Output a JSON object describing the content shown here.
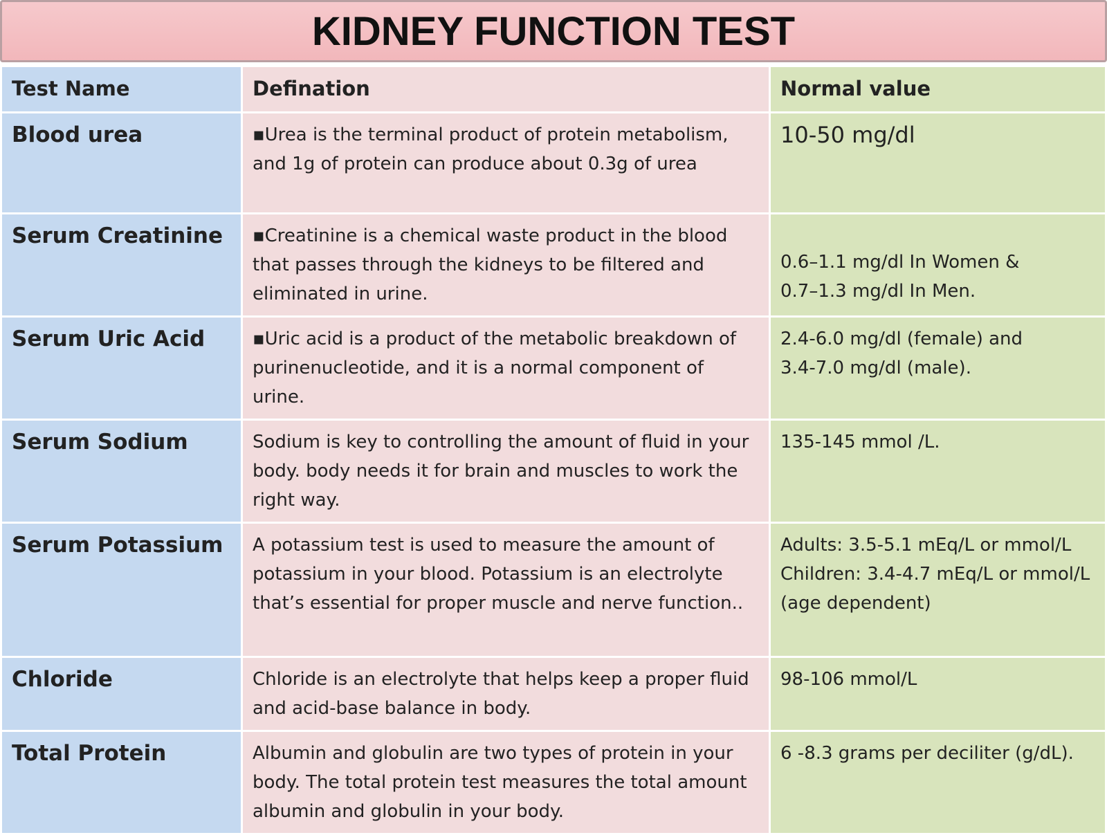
{
  "header": {
    "title": "KIDNEY FUNCTION TEST"
  },
  "table": {
    "columns": [
      "Test Name",
      "Defination",
      "Normal value"
    ],
    "rows": [
      {
        "name": "Blood urea",
        "definition": "▪Urea is the terminal product of protein metabolism, and 1g of protein can produce about 0.3g of urea",
        "normal": [
          "10-50 mg/dl"
        ]
      },
      {
        "name": "Serum Creatinine",
        "definition": "▪Creatinine is a chemical waste product in the blood that passes through the kidneys to be filtered and eliminated in urine.",
        "normal": [
          "0.6–1.1 mg/dl In Women &",
          "0.7–1.3 mg/dl In Men."
        ]
      },
      {
        "name": "Serum Uric Acid",
        "definition": "▪Uric acid is a product of the metabolic breakdown of purinenucleotide, and it is a normal component of urine.",
        "normal": [
          "2.4-6.0 mg/dl (female) and",
          "3.4-7.0 mg/dl (male)."
        ]
      },
      {
        "name": "Serum Sodium",
        "definition": "Sodium is key to controlling the amount of fluid in your body. body needs it for brain and muscles to work the right way.",
        "normal": [
          "135-145 mmol /L."
        ]
      },
      {
        "name": "Serum Potassium",
        "definition": "A potassium test is used to measure the amount of potassium in your blood. Potassium is an electrolyte that’s essential for proper muscle and nerve function..",
        "normal": [
          "Adults: 3.5-5.1 mEq/L or mmol/L",
          "Children: 3.4-4.7 mEq/L or mmol/L (age dependent)"
        ]
      },
      {
        "name": "Chloride",
        "definition": "Chloride is an electrolyte that helps keep a proper fluid and acid-base balance in body.",
        "normal": [
          "98-106 mmol/L"
        ]
      },
      {
        "name": "Total Protein",
        "definition": "Albumin and globulin are two types of protein in your body. The total protein test measures the total amount albumin and globulin in your body.",
        "normal": [
          "6 -8.3 grams per deciliter (g/dL)."
        ]
      }
    ]
  }
}
